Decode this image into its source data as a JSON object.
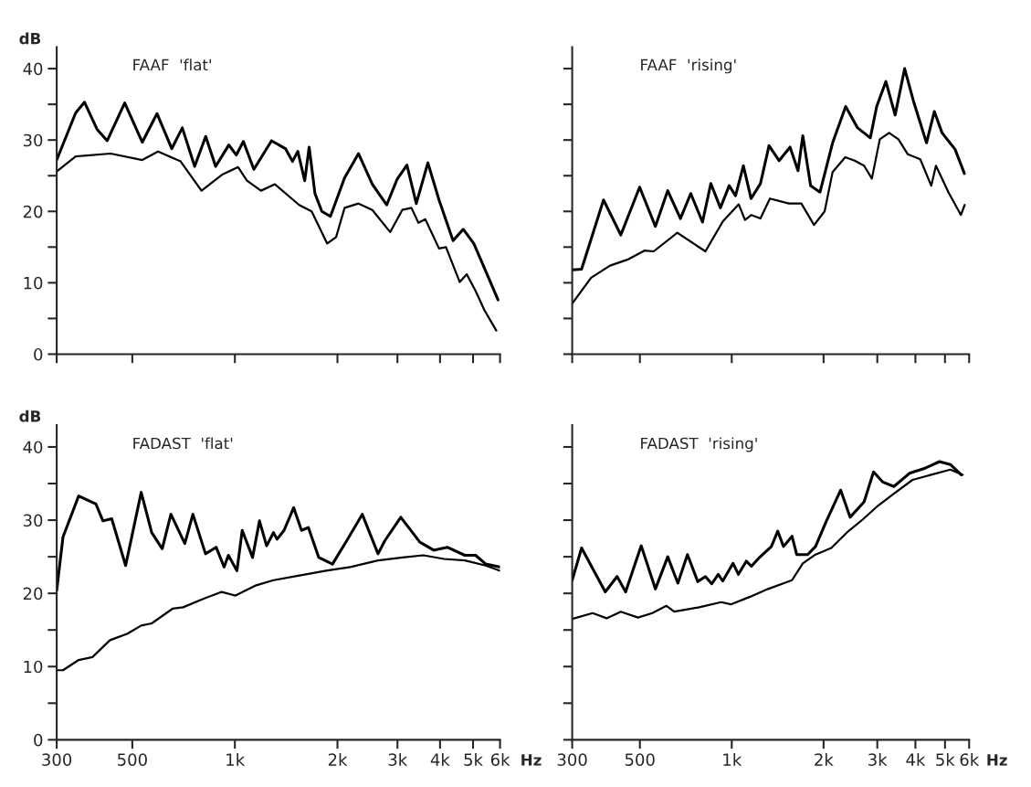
{
  "chart_data": [
    {
      "type": "line",
      "title": "FAAF  'flat'",
      "ylabel": "dB",
      "log": "x",
      "grid": false,
      "tick_labels": "y",
      "xlim": [
        300,
        6000
      ],
      "xticks": [
        300,
        500,
        1000,
        2000,
        3000,
        4000,
        5000,
        6000
      ],
      "ylim": [
        0,
        43
      ],
      "yticks": [
        0,
        {
          "value": 5,
          "label": null
        },
        10,
        {
          "value": 15,
          "label": null
        },
        20,
        {
          "value": 25,
          "label": null
        },
        30,
        {
          "value": 35,
          "label": null
        },
        40
      ],
      "series": [
        {
          "color": "#000000",
          "x": [
            300,
            341,
            362,
            394,
            422,
            475,
            535,
            591,
            653,
            701,
            762,
            821,
            878,
            960,
            1010,
            1059,
            1137,
            1281,
            1407,
            1476,
            1530,
            1603,
            1652,
            1718,
            1800,
            1907,
            2099,
            2306,
            2532,
            2789,
            2993,
            3198,
            3407,
            3685,
            3973,
            4368,
            4680,
            5024,
            5393,
            5920
          ],
          "values": [
            27.2,
            33.8,
            35.3,
            31.5,
            29.9,
            35.2,
            29.7,
            33.7,
            28.8,
            31.7,
            26.3,
            30.5,
            26.3,
            29.3,
            27.9,
            29.8,
            25.9,
            29.9,
            28.8,
            27.0,
            28.4,
            24.3,
            29.0,
            22.5,
            20.0,
            19.3,
            24.7,
            28.1,
            23.8,
            20.9,
            24.5,
            26.5,
            21.1,
            26.8,
            21.6,
            15.9,
            17.5,
            15.5,
            12.1,
            7.6
          ]
        },
        {
          "color": "#000000",
          "x": [
            300,
            341,
            432,
            535,
            595,
            693,
            798,
            921,
            1022,
            1085,
            1193,
            1311,
            1544,
            1680,
            1866,
            1982,
            2099,
            2306,
            2532,
            2856,
            3099,
            3297,
            3457,
            3622,
            3973,
            4164,
            4570,
            4791,
            5082,
            5393,
            5850
          ],
          "values": [
            25.6,
            27.7,
            28.1,
            27.2,
            28.4,
            27.0,
            22.9,
            25.2,
            26.2,
            24.3,
            22.9,
            23.8,
            20.9,
            20.0,
            15.5,
            16.4,
            20.5,
            21.1,
            20.2,
            17.1,
            20.2,
            20.5,
            18.4,
            18.9,
            14.8,
            15.0,
            10.1,
            11.2,
            8.9,
            6.2,
            3.3
          ]
        }
      ]
    },
    {
      "type": "line",
      "title": "FAAF  'rising'",
      "log": "x",
      "grid": false,
      "tick_labels": false,
      "xlim": [
        300,
        6000
      ],
      "xticks": [
        300,
        500,
        1000,
        2000,
        3000,
        4000,
        5000,
        6000
      ],
      "ylim": [
        0,
        43
      ],
      "yticks": [
        0,
        {
          "value": 5,
          "label": null
        },
        10,
        {
          "value": 15,
          "label": null
        },
        20,
        {
          "value": 25,
          "label": null
        },
        30,
        {
          "value": 35,
          "label": null
        },
        40
      ],
      "series": [
        {
          "color": "#000000",
          "x": [
            300,
            322,
            380,
            433,
            499,
            562,
            617,
            679,
            734,
            802,
            854,
            918,
            981,
            1029,
            1092,
            1157,
            1242,
            1325,
            1430,
            1553,
            1649,
            1710,
            1814,
            1947,
            2141,
            2363,
            2586,
            2846,
            2986,
            3201,
            3432,
            3688,
            3957,
            4349,
            4615,
            4891,
            5396,
            5790
          ],
          "values": [
            11.8,
            11.9,
            21.6,
            16.7,
            23.4,
            17.9,
            22.9,
            19.0,
            22.5,
            18.5,
            23.9,
            20.5,
            23.6,
            22.2,
            26.4,
            21.8,
            23.9,
            29.2,
            27.1,
            29.0,
            25.7,
            30.6,
            23.6,
            22.7,
            29.6,
            34.7,
            31.7,
            30.3,
            34.7,
            38.2,
            33.5,
            40.0,
            35.2,
            29.6,
            34.0,
            31.0,
            28.7,
            25.3
          ]
        },
        {
          "color": "#000000",
          "x": [
            300,
            346,
            399,
            459,
            517,
            555,
            663,
            820,
            935,
            1054,
            1105,
            1160,
            1242,
            1334,
            1539,
            1691,
            1861,
            2016,
            2141,
            2355,
            2529,
            2714,
            2880,
            3057,
            3280,
            3519,
            3777,
            4150,
            4508,
            4671,
            5130,
            5640,
            5800
          ],
          "values": [
            7.1,
            10.7,
            12.4,
            13.3,
            14.5,
            14.4,
            17.0,
            14.4,
            18.6,
            21.0,
            18.8,
            19.5,
            19.0,
            21.8,
            21.1,
            21.1,
            18.1,
            20.0,
            25.5,
            27.6,
            27.1,
            26.4,
            24.6,
            30.1,
            31.0,
            30.1,
            28.0,
            27.3,
            23.6,
            26.4,
            22.7,
            19.5,
            20.9
          ]
        }
      ]
    },
    {
      "type": "line",
      "title": "FADAST  'flat'",
      "ylabel": "dB",
      "xlabel": "Hz",
      "log": "x",
      "grid": false,
      "xlim": [
        300,
        6000
      ],
      "xticks": [
        300,
        500,
        {
          "value": 1000,
          "label": "1k"
        },
        {
          "value": 2000,
          "label": "2k"
        },
        {
          "value": 3000,
          "label": "3k"
        },
        {
          "value": 4000,
          "label": "4k"
        },
        {
          "value": 5000,
          "label": "5k"
        },
        {
          "value": 6000,
          "label": "6k"
        }
      ],
      "ylim": [
        0,
        43
      ],
      "yticks": [
        0,
        {
          "value": 5,
          "label": null
        },
        10,
        {
          "value": 15,
          "label": null
        },
        20,
        {
          "value": 25,
          "label": null
        },
        30,
        {
          "value": 35,
          "label": null
        },
        40
      ],
      "series": [
        {
          "color": "#000000",
          "x": [
            300,
            313,
            348,
            391,
            410,
            435,
            478,
            531,
            570,
            612,
            649,
            713,
            753,
            820,
            881,
            930,
            957,
            1014,
            1051,
            1127,
            1181,
            1239,
            1298,
            1330,
            1394,
            1488,
            1569,
            1643,
            1763,
            1934,
            2130,
            2365,
            2631,
            2755,
            3068,
            3491,
            3832,
            4200,
            4730,
            5085,
            5450,
            5980
          ],
          "values": [
            20.4,
            27.7,
            33.3,
            32.2,
            29.9,
            30.2,
            23.8,
            33.8,
            28.3,
            26.1,
            30.8,
            26.8,
            30.8,
            25.4,
            26.3,
            23.6,
            25.2,
            23.1,
            28.6,
            24.9,
            29.9,
            26.5,
            28.3,
            27.4,
            28.6,
            31.7,
            28.6,
            29.0,
            24.9,
            24.0,
            27.2,
            30.8,
            25.4,
            27.2,
            30.4,
            27.0,
            25.9,
            26.3,
            25.2,
            25.2,
            24.0,
            23.6
          ]
        },
        {
          "color": "#000000",
          "x": [
            300,
            313,
            348,
            382,
            430,
            484,
            531,
            570,
            656,
            705,
            813,
            915,
            1004,
            1155,
            1298,
            1534,
            1850,
            2181,
            2631,
            3104,
            3573,
            4111,
            4730,
            5450,
            5980
          ],
          "values": [
            9.5,
            9.5,
            10.9,
            11.3,
            13.6,
            14.5,
            15.6,
            15.9,
            17.9,
            18.1,
            19.3,
            20.2,
            19.7,
            21.1,
            21.8,
            22.4,
            23.1,
            23.6,
            24.5,
            24.9,
            25.2,
            24.7,
            24.5,
            23.8,
            23.1
          ]
        }
      ]
    },
    {
      "type": "line",
      "title": "FADAST  'rising'",
      "xlabel": "Hz",
      "log": "x",
      "grid": false,
      "tick_labels": "x",
      "xlim": [
        300,
        6000
      ],
      "xticks": [
        300,
        500,
        {
          "value": 1000,
          "label": "1k"
        },
        {
          "value": 2000,
          "label": "2k"
        },
        {
          "value": 3000,
          "label": "3k"
        },
        {
          "value": 4000,
          "label": "4k"
        },
        {
          "value": 5000,
          "label": "5k"
        },
        {
          "value": 6000,
          "label": "6k"
        }
      ],
      "ylim": [
        0,
        43
      ],
      "yticks": [
        0,
        {
          "value": 5,
          "label": null
        },
        10,
        {
          "value": 15,
          "label": null
        },
        20,
        {
          "value": 25,
          "label": null
        },
        30,
        {
          "value": 35,
          "label": null
        },
        40
      ],
      "series": [
        {
          "color": "#000000",
          "x": [
            300,
            322,
            385,
            421,
            449,
            505,
            562,
            617,
            666,
            716,
            774,
            820,
            860,
            903,
            935,
            1010,
            1052,
            1116,
            1160,
            1226,
            1349,
            1415,
            1478,
            1576,
            1633,
            1774,
            1882,
            2044,
            2276,
            2443,
            2716,
            2916,
            3130,
            3399,
            3823,
            4304,
            4796,
            5209,
            5650
          ],
          "values": [
            21.8,
            26.2,
            20.2,
            22.3,
            20.2,
            26.5,
            20.6,
            25.0,
            21.4,
            25.3,
            21.6,
            22.3,
            21.3,
            22.6,
            21.7,
            24.1,
            22.6,
            24.4,
            23.7,
            24.8,
            26.4,
            28.5,
            26.4,
            27.8,
            25.3,
            25.3,
            26.4,
            29.9,
            34.1,
            30.4,
            32.5,
            36.6,
            35.2,
            34.6,
            36.4,
            37.1,
            38.0,
            37.6,
            36.2
          ]
        },
        {
          "color": "#000000",
          "x": [
            300,
            350,
            389,
            433,
            493,
            549,
            611,
            648,
            782,
            924,
            993,
            1143,
            1316,
            1576,
            1710,
            1882,
            2120,
            2383,
            2689,
            3021,
            3399,
            3914,
            4508,
            5209,
            5720
          ],
          "values": [
            16.5,
            17.3,
            16.6,
            17.5,
            16.7,
            17.3,
            18.3,
            17.5,
            18.1,
            18.8,
            18.5,
            19.5,
            20.6,
            21.8,
            24.1,
            25.3,
            26.2,
            28.3,
            30.1,
            32.0,
            33.6,
            35.5,
            36.2,
            36.9,
            36.2
          ]
        }
      ]
    }
  ]
}
